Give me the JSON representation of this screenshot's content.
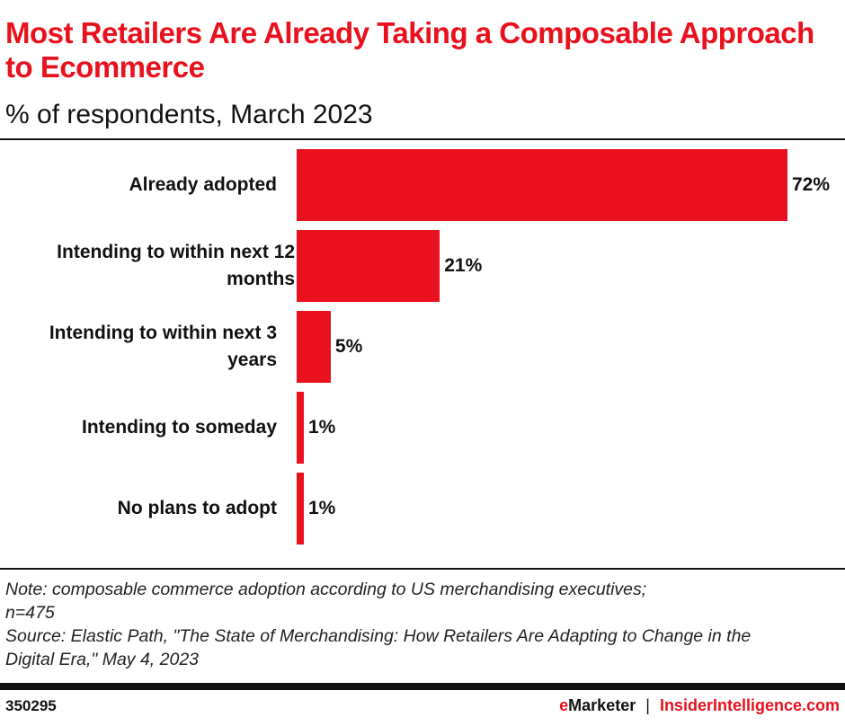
{
  "title": "Most Retailers Are Already Taking a Composable Approach to Ecommerce",
  "subtitle": "% of respondents, March 2023",
  "chart_data": {
    "type": "bar",
    "orientation": "horizontal",
    "categories": [
      "Already adopted",
      "Intending to within next 12 months",
      "Intending to within next 3 years",
      "Intending to someday",
      "No plans to adopt"
    ],
    "values": [
      72,
      21,
      5,
      1,
      1
    ],
    "value_labels": [
      "72%",
      "21%",
      "5%",
      "1%",
      "1%"
    ],
    "unit": "%",
    "bar_color": "#e8111d",
    "grid": false
  },
  "notes": {
    "note": "Note: composable commerce adoption according to US merchandising executives; n=475",
    "source": "Source: Elastic Path, \"The State of Merchandising: How Retailers Are Adapting to Change in the Digital Era,\" May 4, 2023"
  },
  "footer": {
    "id": "350295",
    "brand_e": "e",
    "brand_rest": "Marketer",
    "separator": "|",
    "brand2": "InsiderIntelligence.com"
  }
}
